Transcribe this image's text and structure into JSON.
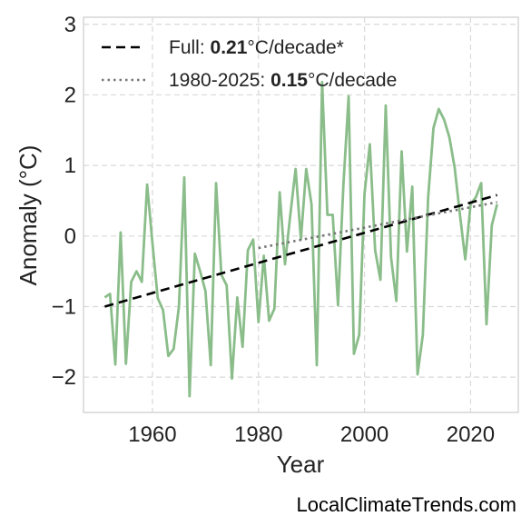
{
  "chart_data": {
    "type": "line",
    "xlabel": "Year",
    "ylabel": "Anomaly (°C)",
    "xlim": [
      1947,
      2029
    ],
    "ylim": [
      -2.5,
      3.1
    ],
    "xticks": [
      1960,
      1980,
      2000,
      2020
    ],
    "yticks": [
      -2,
      -1,
      0,
      1,
      2,
      3
    ],
    "ytick_labels": [
      "−2",
      "−1",
      "0",
      "1",
      "2",
      "3"
    ],
    "grid": true,
    "legend_position": "top-left",
    "series": [
      {
        "style": "solid",
        "color": "#8abd8a",
        "x": [
          1951,
          1952,
          1953,
          1954,
          1955,
          1956,
          1957,
          1958,
          1959,
          1960,
          1961,
          1962,
          1963,
          1964,
          1965,
          1966,
          1967,
          1968,
          1969,
          1970,
          1971,
          1972,
          1973,
          1974,
          1975,
          1976,
          1977,
          1978,
          1979,
          1980,
          1981,
          1982,
          1983,
          1984,
          1985,
          1986,
          1987,
          1988,
          1989,
          1990,
          1991,
          1992,
          1993,
          1994,
          1995,
          1996,
          1997,
          1998,
          1999,
          2000,
          2001,
          2002,
          2003,
          2004,
          2005,
          2006,
          2007,
          2008,
          2009,
          2010,
          2011,
          2012,
          2013,
          2014,
          2015,
          2016,
          2017,
          2018,
          2019,
          2020,
          2021,
          2022,
          2023,
          2024,
          2025
        ],
        "values": [
          -0.87,
          -0.82,
          -1.82,
          0.05,
          -1.81,
          -0.65,
          -0.5,
          -0.65,
          0.73,
          -0.1,
          -0.88,
          -1.05,
          -1.7,
          -1.6,
          -1.0,
          0.83,
          -2.27,
          -0.25,
          -0.5,
          -0.78,
          -1.83,
          0.75,
          -0.55,
          -0.7,
          -2.02,
          -0.87,
          -1.57,
          -0.2,
          -0.05,
          -1.22,
          -0.28,
          -1.2,
          -1.03,
          0.62,
          -0.4,
          0.3,
          0.95,
          -0.05,
          0.95,
          0.45,
          -1.83,
          2.18,
          0.3,
          0.3,
          -0.98,
          0.7,
          1.98,
          -1.67,
          -1.4,
          0.6,
          1.3,
          -0.2,
          -0.62,
          1.85,
          -0.3,
          -0.92,
          1.2,
          -0.22,
          0.7,
          -1.96,
          -1.4,
          0.55,
          1.53,
          1.8,
          1.65,
          1.4,
          0.97,
          0.3,
          -0.33,
          0.45,
          0.55,
          0.75,
          -1.25,
          0.15,
          0.45
        ]
      },
      {
        "name": "Full: 0.21°C/decade*",
        "style": "dashed",
        "color": "#000000",
        "x": [
          1951,
          2025
        ],
        "values": [
          -1.0,
          0.58
        ]
      },
      {
        "name": "1980-2025: 0.15°C/decade",
        "style": "dotted",
        "color": "#777777",
        "x": [
          1980,
          2025
        ],
        "values": [
          -0.17,
          0.48
        ]
      }
    ],
    "legend": [
      {
        "prefix": "Full: ",
        "bold": "0.21",
        "suffix": "°C/decade*"
      },
      {
        "prefix": "1980-2025: ",
        "bold": "0.15",
        "suffix": "°C/decade"
      }
    ]
  },
  "footer": {
    "source": "LocalClimateTrends.com"
  }
}
